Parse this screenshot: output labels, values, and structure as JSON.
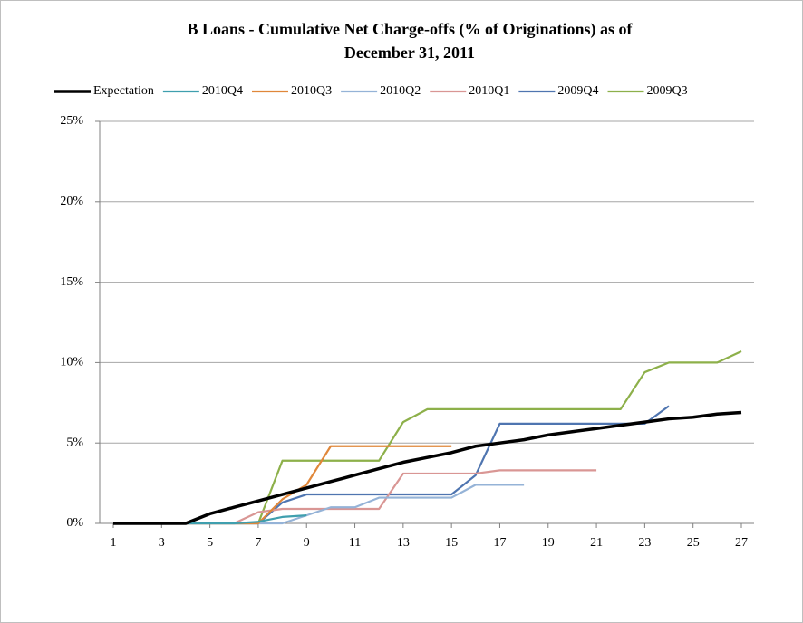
{
  "chart_data": {
    "type": "line",
    "title": [
      "B  Loans - Cumulative Net Charge-offs (% of Originations) as of",
      "December 31, 2011"
    ],
    "x": [
      1,
      2,
      3,
      4,
      5,
      6,
      7,
      8,
      9,
      10,
      11,
      12,
      13,
      14,
      15,
      16,
      17,
      18,
      19,
      20,
      21,
      22,
      23,
      24,
      25,
      26,
      27
    ],
    "xlim": [
      1,
      27
    ],
    "xticks": [
      1,
      3,
      5,
      7,
      9,
      11,
      13,
      15,
      17,
      19,
      21,
      23,
      25,
      27
    ],
    "ylim": [
      0,
      25
    ],
    "yticks": [
      {
        "value": 0,
        "label": "0%"
      },
      {
        "value": 5,
        "label": "5%"
      },
      {
        "value": 10,
        "label": "10%"
      },
      {
        "value": 15,
        "label": "15%"
      },
      {
        "value": 20,
        "label": "20%"
      },
      {
        "value": 25,
        "label": "25%"
      }
    ],
    "grid": true,
    "legend": "top",
    "series": [
      {
        "name": "Expectation",
        "color": "#000000",
        "values": [
          0,
          0,
          0,
          0,
          0.6,
          1.0,
          1.4,
          1.8,
          2.2,
          2.6,
          3.0,
          3.4,
          3.8,
          4.1,
          4.4,
          4.8,
          5.0,
          5.2,
          5.5,
          5.7,
          5.9,
          6.1,
          6.3,
          6.5,
          6.6,
          6.8,
          6.9
        ]
      },
      {
        "name": "2010Q4",
        "color": "#3f9fae",
        "values": [
          0,
          0,
          0,
          0,
          0,
          0,
          0.1,
          0.4,
          0.5,
          null,
          null,
          null,
          null,
          null,
          null,
          null,
          null,
          null,
          null,
          null,
          null,
          null,
          null,
          null,
          null,
          null,
          null
        ]
      },
      {
        "name": "2010Q3",
        "color": "#e0873a",
        "values": [
          0,
          0,
          0,
          0,
          0,
          0,
          0,
          1.5,
          2.4,
          4.8,
          4.8,
          4.8,
          4.8,
          4.8,
          4.8,
          null,
          null,
          null,
          null,
          null,
          null,
          null,
          null,
          null,
          null,
          null,
          null
        ]
      },
      {
        "name": "2010Q2",
        "color": "#95b3d7",
        "values": [
          0,
          0,
          0,
          0,
          0,
          0,
          0,
          0,
          0.5,
          1.0,
          1.0,
          1.6,
          1.6,
          1.6,
          1.6,
          2.4,
          2.4,
          2.4,
          null,
          null,
          null,
          null,
          null,
          null,
          null,
          null,
          null
        ]
      },
      {
        "name": "2010Q1",
        "color": "#d99694",
        "values": [
          0,
          0,
          0,
          0,
          0,
          0,
          0.7,
          0.9,
          0.9,
          0.9,
          0.9,
          0.9,
          3.1,
          3.1,
          3.1,
          3.1,
          3.3,
          3.3,
          3.3,
          3.3,
          3.3,
          null,
          null,
          null,
          null,
          null,
          null
        ]
      },
      {
        "name": "2009Q4",
        "color": "#4f75b0",
        "values": [
          0,
          0,
          0,
          0,
          0,
          0,
          0,
          1.3,
          1.8,
          1.8,
          1.8,
          1.8,
          1.8,
          1.8,
          1.8,
          3.0,
          6.2,
          6.2,
          6.2,
          6.2,
          6.2,
          6.2,
          6.2,
          7.3,
          null,
          null,
          null
        ]
      },
      {
        "name": "2009Q3",
        "color": "#8db04a",
        "values": [
          0,
          0,
          0,
          0,
          0,
          0,
          0,
          3.9,
          3.9,
          3.9,
          3.9,
          3.9,
          6.3,
          7.1,
          7.1,
          7.1,
          7.1,
          7.1,
          7.1,
          7.1,
          7.1,
          7.1,
          9.4,
          10.0,
          10.0,
          10.0,
          10.7
        ]
      }
    ]
  }
}
